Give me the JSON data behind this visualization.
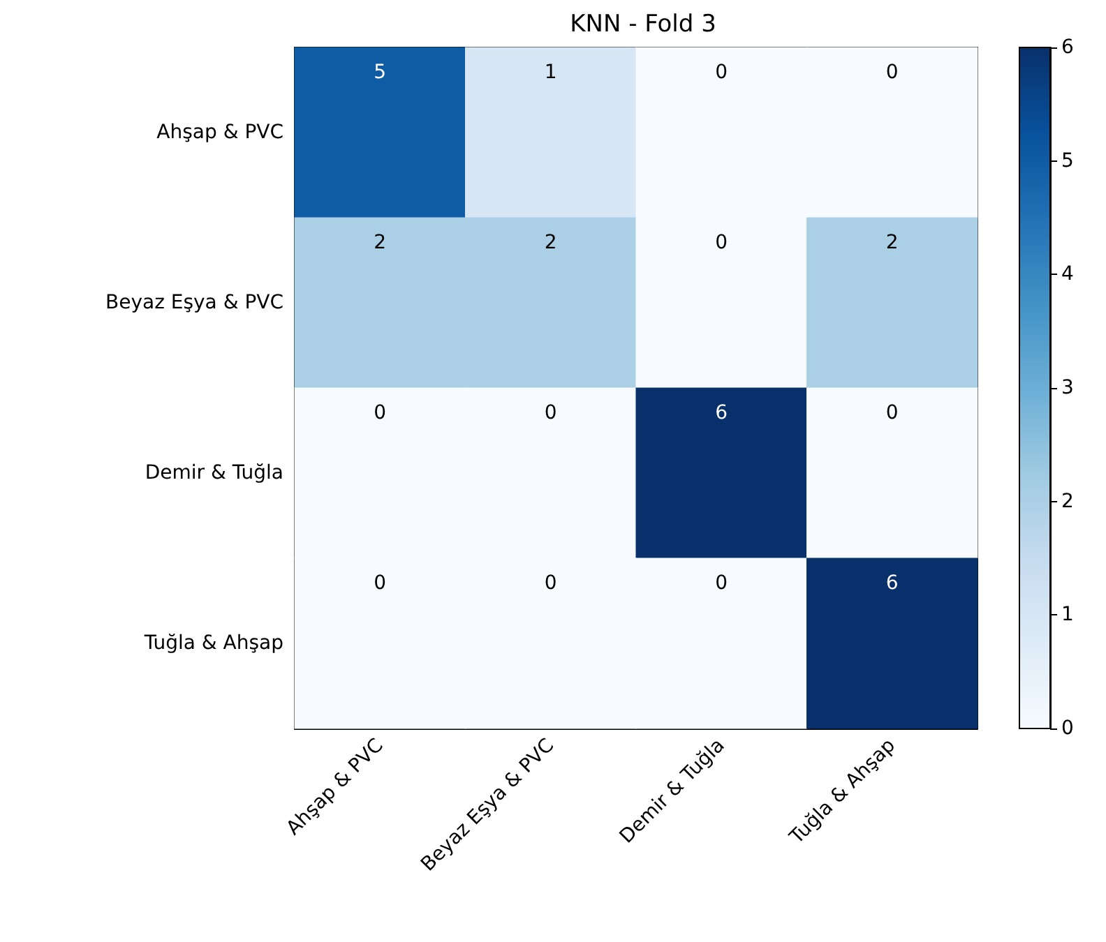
{
  "chart_data": {
    "type": "heatmap",
    "title": "KNN - Fold 3",
    "categories": [
      "Ahşap & PVC",
      "Beyaz Eşya & PVC",
      "Demir & Tuğla",
      "Tuğla & Ahşap"
    ],
    "y_categories": [
      "Ahşap & PVC",
      "Beyaz Eşya & PVC",
      "Demir & Tuğla",
      "Tuğla & Ahşap"
    ],
    "cells": [
      [
        5,
        1,
        0,
        0
      ],
      [
        2,
        2,
        0,
        2
      ],
      [
        0,
        0,
        6,
        0
      ],
      [
        0,
        0,
        0,
        6
      ]
    ],
    "clim": [
      0,
      6
    ],
    "cticks": [
      0,
      1,
      2,
      3,
      4,
      5,
      6
    ],
    "data_labels": true
  }
}
